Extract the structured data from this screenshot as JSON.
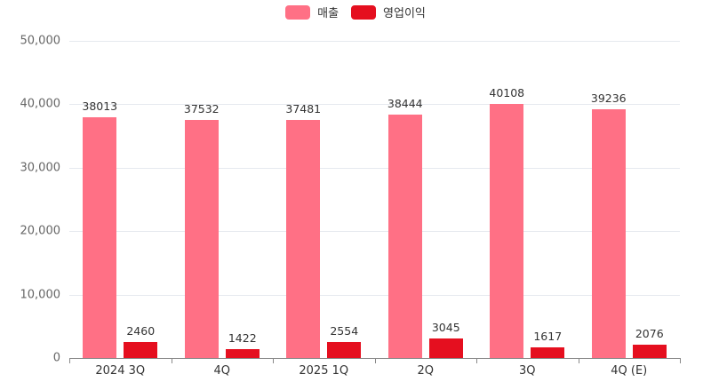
{
  "chart_data": {
    "type": "bar",
    "title": "",
    "xlabel": "",
    "ylabel": "",
    "ylim": [
      0,
      50000
    ],
    "yticks": [
      0,
      10000,
      20000,
      30000,
      40000,
      50000
    ],
    "ytick_labels": [
      "0",
      "10,000",
      "20,000",
      "30,000",
      "40,000",
      "50,000"
    ],
    "grid": true,
    "legend_position": "top",
    "categories": [
      "2024 3Q",
      "4Q",
      "2025 1Q",
      "2Q",
      "3Q",
      "4Q (E)"
    ],
    "series": [
      {
        "name": "매출",
        "color": "#ff7085",
        "values": [
          38013,
          37532,
          37481,
          38444,
          40108,
          39236
        ]
      },
      {
        "name": "영업이익",
        "color": "#e50f1f",
        "values": [
          2460,
          1422,
          2554,
          3045,
          1617,
          2076
        ]
      }
    ]
  },
  "legend": {
    "items": [
      {
        "label": "매출",
        "color": "#ff7085"
      },
      {
        "label": "영업이익",
        "color": "#e50f1f"
      }
    ]
  }
}
